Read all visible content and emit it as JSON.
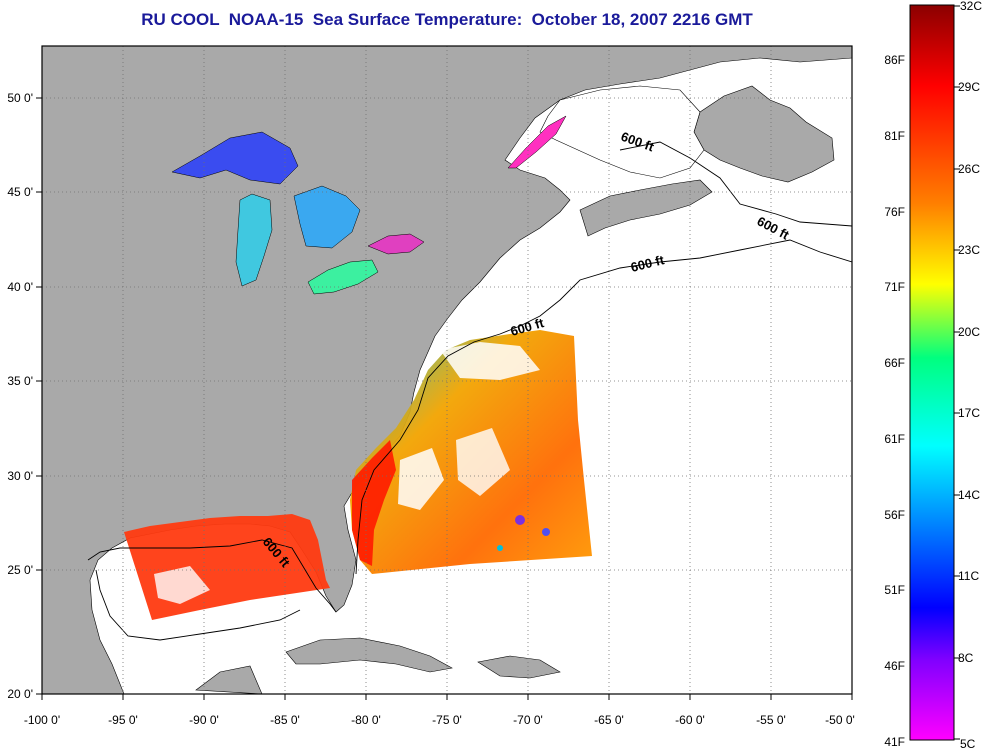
{
  "title": "RU COOL  NOAA-15  Sea Surface Temperature:  October 18, 2007 2216 GMT",
  "map": {
    "lon_labels": [
      "-100 0'",
      "-95 0'",
      "-90 0'",
      "-85 0'",
      "-80 0'",
      "-75 0'",
      "-70 0'",
      "-65 0'",
      "-60 0'",
      "-55 0'",
      "-50 0'"
    ],
    "lat_labels": [
      "50 0'",
      "45 0'",
      "40 0'",
      "35 0'",
      "30 0'",
      "25 0'",
      "20 0'"
    ],
    "contour_label": "600 ft",
    "colors": {
      "land": "#a9a9a9",
      "ocean": "#ffffff",
      "frame": "#000000",
      "grid": "#7a7a7a"
    }
  },
  "colorbar": {
    "celsius_labels": [
      "32C",
      "29C",
      "26C",
      "23C",
      "20C",
      "17C",
      "14C",
      "11C",
      "8C",
      "5C"
    ],
    "fahrenheit_labels": [
      "86F",
      "81F",
      "76F",
      "71F",
      "66F",
      "61F",
      "56F",
      "51F",
      "46F",
      "41F"
    ],
    "colors": [
      "#8b0000",
      "#ff0000",
      "#ff7f00",
      "#ffff00",
      "#00ff7f",
      "#00ffff",
      "#0000ff",
      "#7f00ff",
      "#ff00ff"
    ]
  }
}
